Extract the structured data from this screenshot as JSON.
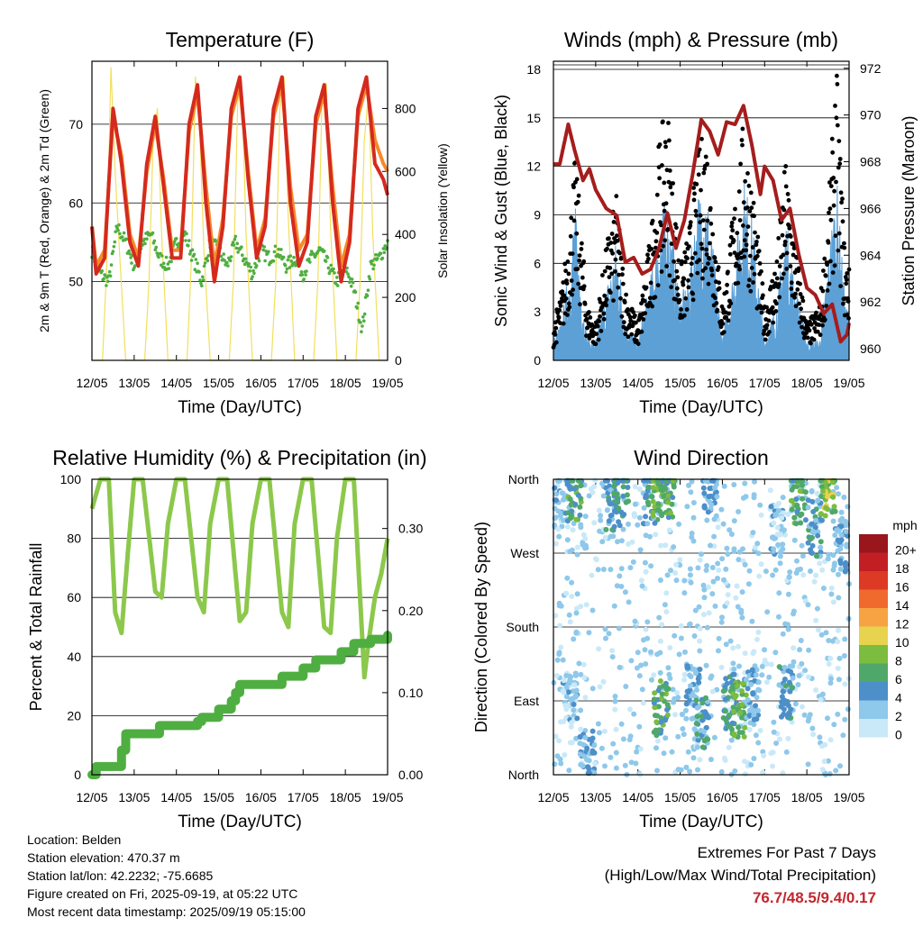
{
  "info": {
    "location": "Location: Belden",
    "elevation": "Station elevation: 470.37 m",
    "latlon": "Station lat/lon: 42.2232; -75.6685",
    "created": "Figure created on Fri, 2025-09-19, at 05:22 UTC",
    "recent": "Most recent data timestamp: 2025/09/19 05:15:00"
  },
  "extremes": {
    "title": "Extremes For Past 7 Days",
    "subtitle": "(High/Low/Max Wind/Total Precipitation)",
    "values": "76.7/48.5/9.4/0.17"
  },
  "colors": {
    "temp2m": "#d42a1e",
    "temp9m": "#f58a2a",
    "dewpoint": "#4fae41",
    "solar": "#f2df5c",
    "wind": "#5ca0d6",
    "gust": "#000000",
    "pressure": "#a51d1d",
    "rh": "#8cc84b",
    "precip": "#4fae41"
  },
  "chart_data": [
    {
      "type": "line",
      "title": "Temperature (F)",
      "xlabel": "Time (Day/UTC)",
      "ylabel": "2m & 9m T (Red, Orange) & 2m Td (Green)",
      "y2label": "Solar Insolation (Yellow)",
      "x_ticks": [
        "12/05",
        "13/05",
        "14/05",
        "15/05",
        "16/05",
        "17/05",
        "18/05",
        "19/05"
      ],
      "ylim": [
        40,
        78
      ],
      "yticks": [
        50,
        60,
        70
      ],
      "y2lim": [
        0,
        950
      ],
      "y2ticks": [
        0,
        200,
        400,
        600,
        800
      ],
      "grid": true,
      "series": [
        {
          "name": "2m T",
          "x_days": [
            0,
            0.1,
            0.3,
            0.5,
            0.7,
            0.9,
            1.1,
            1.3,
            1.5,
            1.7,
            1.9,
            2.1,
            2.3,
            2.5,
            2.7,
            2.9,
            3.1,
            3.3,
            3.5,
            3.7,
            3.9,
            4.1,
            4.3,
            4.5,
            4.7,
            4.9,
            5.1,
            5.3,
            5.5,
            5.7,
            5.9,
            6.1,
            6.3,
            6.5,
            6.7,
            6.9,
            7.0
          ],
          "values": [
            57,
            51,
            53,
            72,
            65,
            55,
            52,
            65,
            71,
            62,
            53,
            53,
            70,
            75,
            60,
            50,
            57,
            72,
            76,
            63,
            53,
            57,
            72,
            76,
            60,
            52,
            55,
            71,
            75,
            60,
            50,
            55,
            72,
            76,
            65,
            63,
            61
          ]
        },
        {
          "name": "9m T",
          "x_days": [
            0,
            0.1,
            0.3,
            0.5,
            0.7,
            0.9,
            1.1,
            1.3,
            1.5,
            1.7,
            1.9,
            2.1,
            2.3,
            2.5,
            2.7,
            2.9,
            3.1,
            3.3,
            3.5,
            3.7,
            3.9,
            4.1,
            4.3,
            4.5,
            4.7,
            4.9,
            5.1,
            5.3,
            5.5,
            5.7,
            5.9,
            6.1,
            6.3,
            6.5,
            6.7,
            6.9,
            7.0
          ],
          "values": [
            57,
            52,
            54,
            71,
            66,
            56,
            53,
            64,
            70,
            63,
            54,
            54,
            69,
            74,
            62,
            52,
            58,
            71,
            75,
            64,
            54,
            58,
            71,
            75,
            62,
            54,
            56,
            70,
            74,
            62,
            52,
            56,
            71,
            75,
            68,
            65,
            64
          ]
        },
        {
          "name": "2m Td",
          "x_days": [
            0,
            0.2,
            0.4,
            0.6,
            0.8,
            1.0,
            1.2,
            1.4,
            1.6,
            1.8,
            2.0,
            2.2,
            2.4,
            2.6,
            2.8,
            3.0,
            3.2,
            3.4,
            3.6,
            3.8,
            4.0,
            4.2,
            4.4,
            4.6,
            4.8,
            5.0,
            5.2,
            5.4,
            5.6,
            5.8,
            6.0,
            6.2,
            6.4,
            6.6,
            6.8,
            7.0
          ],
          "values": [
            54,
            51,
            50,
            57,
            55,
            52,
            55,
            56,
            53,
            52,
            55,
            56,
            53,
            50,
            55,
            54,
            52,
            55,
            53,
            51,
            54,
            53,
            54,
            52,
            53,
            51,
            53,
            54,
            52,
            50,
            52,
            49,
            44,
            52,
            53,
            55
          ]
        },
        {
          "name": "Solar",
          "axis": "y2",
          "x_days": [
            0,
            0.25,
            0.35,
            0.45,
            0.55,
            0.65,
            0.8,
            1.25,
            1.35,
            1.45,
            1.55,
            1.65,
            1.8,
            2.25,
            2.35,
            2.45,
            2.55,
            2.65,
            2.8,
            3.25,
            3.35,
            3.45,
            3.55,
            3.65,
            3.8,
            4.25,
            4.35,
            4.45,
            4.55,
            4.65,
            4.8,
            5.25,
            5.35,
            5.45,
            5.55,
            5.65,
            5.8,
            6.25,
            6.35,
            6.45,
            6.55,
            6.65,
            6.8,
            7.0
          ],
          "values": [
            0,
            0,
            300,
            930,
            600,
            350,
            0,
            0,
            250,
            700,
            800,
            400,
            0,
            0,
            300,
            900,
            750,
            350,
            0,
            0,
            250,
            820,
            870,
            400,
            0,
            0,
            250,
            800,
            900,
            450,
            0,
            0,
            250,
            850,
            880,
            420,
            0,
            0,
            250,
            700,
            850,
            400,
            0,
            0
          ]
        }
      ]
    },
    {
      "type": "scatter",
      "title": "Winds (mph) & Pressure (mb)",
      "xlabel": "Time (Day/UTC)",
      "ylabel": "Sonic Wind & Gust (Blue, Black)",
      "y2label": "Station Pressure (Maroon)",
      "x_ticks": [
        "12/05",
        "13/05",
        "14/05",
        "15/05",
        "16/05",
        "17/05",
        "18/05",
        "19/05"
      ],
      "ylim": [
        0,
        18.5
      ],
      "yticks": [
        0,
        3,
        6,
        9,
        12,
        15,
        18
      ],
      "y2lim": [
        959.5,
        972.3
      ],
      "y2ticks": [
        960,
        962,
        964,
        966,
        968,
        970,
        972
      ],
      "grid": true,
      "series": [
        {
          "name": "Wind",
          "x_days": [
            0,
            0.2,
            0.4,
            0.5,
            0.6,
            0.8,
            1.0,
            1.3,
            1.5,
            1.7,
            2.0,
            2.3,
            2.5,
            2.7,
            3.0,
            3.2,
            3.4,
            3.6,
            3.8,
            4.0,
            4.3,
            4.5,
            4.7,
            5.0,
            5.3,
            5.5,
            5.7,
            6.0,
            6.3,
            6.5,
            6.7,
            6.9,
            7.0
          ],
          "values": [
            1,
            2,
            5,
            8,
            5,
            1,
            1,
            4,
            6,
            2,
            1,
            4,
            7,
            8,
            3,
            4,
            8,
            9,
            5,
            1,
            5,
            9,
            7,
            1,
            3,
            7,
            4,
            1,
            1,
            5,
            9,
            3,
            2
          ]
        },
        {
          "name": "Gust",
          "x_days": [
            0,
            0.2,
            0.4,
            0.5,
            0.6,
            0.8,
            1.0,
            1.3,
            1.5,
            1.7,
            2.0,
            2.3,
            2.5,
            2.7,
            3.0,
            3.2,
            3.4,
            3.6,
            3.8,
            4.0,
            4.3,
            4.5,
            4.7,
            5.0,
            5.3,
            5.5,
            5.7,
            6.0,
            6.3,
            6.5,
            6.7,
            6.9,
            7.0
          ],
          "values": [
            2,
            4,
            8,
            11,
            9,
            3,
            2,
            7,
            9,
            4,
            2,
            7,
            12,
            14,
            5,
            7,
            11,
            13,
            8,
            3,
            9,
            13,
            10,
            3,
            6,
            11,
            7,
            2,
            3,
            8,
            16,
            6,
            5
          ]
        },
        {
          "name": "Pressure",
          "axis": "y2",
          "x_days": [
            0,
            0.15,
            0.35,
            0.5,
            0.7,
            0.85,
            1.0,
            1.25,
            1.5,
            1.7,
            1.9,
            2.1,
            2.3,
            2.5,
            2.7,
            2.9,
            3.1,
            3.3,
            3.5,
            3.7,
            3.9,
            4.1,
            4.3,
            4.5,
            4.7,
            4.9,
            5.0,
            5.2,
            5.4,
            5.6,
            5.8,
            6.0,
            6.2,
            6.4,
            6.6,
            6.8,
            6.95,
            7.0
          ],
          "values": [
            967.9,
            967.9,
            969.6,
            968.5,
            967.2,
            967.7,
            966.8,
            966.0,
            965.7,
            963.7,
            963.9,
            963.2,
            963.4,
            964.3,
            965.8,
            964.3,
            965.5,
            967.5,
            969.8,
            969.3,
            968.3,
            969.7,
            969.6,
            970.4,
            968.7,
            966.6,
            967.8,
            967.2,
            965.5,
            966.0,
            964.1,
            962.6,
            962.3,
            961.5,
            961.9,
            960.3,
            960.6,
            961.1
          ]
        }
      ]
    },
    {
      "type": "line",
      "title": "Relative Humidity (%) & Precipitation (in)",
      "xlabel": "Time (Day/UTC)",
      "ylabel": "Percent & Total Rainfall",
      "x_ticks": [
        "12/05",
        "13/05",
        "14/05",
        "15/05",
        "16/05",
        "17/05",
        "18/05",
        "19/05"
      ],
      "ylim": [
        0,
        100
      ],
      "yticks": [
        0,
        20,
        40,
        60,
        80,
        100
      ],
      "y2lim": [
        0,
        0.36
      ],
      "y2ticks": [
        "0.00",
        "0.10",
        "0.20",
        "0.30"
      ],
      "grid": true,
      "series": [
        {
          "name": "RH",
          "x_days": [
            0,
            0.2,
            0.4,
            0.55,
            0.7,
            0.85,
            1.0,
            1.2,
            1.5,
            1.65,
            1.8,
            2.0,
            2.2,
            2.5,
            2.65,
            2.8,
            3.0,
            3.2,
            3.5,
            3.65,
            3.8,
            4.0,
            4.2,
            4.5,
            4.65,
            4.8,
            5.0,
            5.2,
            5.5,
            5.65,
            5.8,
            6.0,
            6.2,
            6.45,
            6.55,
            6.7,
            6.85,
            7.0
          ],
          "values": [
            90,
            100,
            100,
            55,
            48,
            75,
            100,
            100,
            62,
            60,
            85,
            100,
            100,
            60,
            55,
            85,
            100,
            100,
            52,
            55,
            85,
            100,
            100,
            55,
            50,
            85,
            100,
            100,
            50,
            48,
            80,
            100,
            100,
            33,
            45,
            60,
            68,
            80
          ]
        },
        {
          "name": "Precipitation",
          "axis": "y2",
          "x_days": [
            0,
            0.1,
            0.5,
            0.7,
            0.8,
            1.5,
            1.6,
            2.2,
            2.5,
            2.6,
            2.9,
            3.0,
            3.3,
            3.4,
            3.5,
            4.3,
            4.5,
            4.7,
            5.0,
            5.3,
            5.7,
            5.9,
            6.2,
            6.6,
            7.0
          ],
          "values": [
            0.0,
            0.01,
            0.01,
            0.03,
            0.05,
            0.05,
            0.06,
            0.06,
            0.065,
            0.07,
            0.07,
            0.08,
            0.09,
            0.1,
            0.11,
            0.11,
            0.12,
            0.12,
            0.13,
            0.14,
            0.14,
            0.15,
            0.16,
            0.165,
            0.17
          ]
        }
      ]
    },
    {
      "type": "scatter",
      "title": "Wind Direction",
      "xlabel": "Time (Day/UTC)",
      "ylabel": "Direction (Colored By Speed)",
      "x_ticks": [
        "12/05",
        "13/05",
        "14/05",
        "15/05",
        "16/05",
        "17/05",
        "18/05",
        "19/05"
      ],
      "ylim": [
        0,
        360
      ],
      "ytick_labels": [
        "North",
        "East",
        "South",
        "West",
        "North"
      ],
      "legend": {
        "title": "mph",
        "placement": "right",
        "labels": [
          "0",
          "2",
          "4",
          "6",
          "8",
          "10",
          "12",
          "14",
          "16",
          "18",
          "20+"
        ],
        "colors": [
          "#c9e9f8",
          "#8ec8ea",
          "#4c8fc9",
          "#4fa86a",
          "#7cbc3f",
          "#e8d34e",
          "#f6a443",
          "#ef6a2c",
          "#dd3a26",
          "#c11f24",
          "#98161c"
        ]
      },
      "grid": true,
      "clusters": [
        {
          "x_days": 0.2,
          "dir": 330,
          "speed": 2
        },
        {
          "x_days": 0.5,
          "dir": 345,
          "speed": 6
        },
        {
          "x_days": 0.4,
          "dir": 90,
          "speed": 2
        },
        {
          "x_days": 0.8,
          "dir": 20,
          "speed": 3
        },
        {
          "x_days": 1.4,
          "dir": 330,
          "speed": 4
        },
        {
          "x_days": 1.6,
          "dir": 350,
          "speed": 5
        },
        {
          "x_days": 2.3,
          "dir": 340,
          "speed": 4
        },
        {
          "x_days": 2.5,
          "dir": 350,
          "speed": 8
        },
        {
          "x_days": 2.7,
          "dir": 345,
          "speed": 6
        },
        {
          "x_days": 2.55,
          "dir": 80,
          "speed": 6
        },
        {
          "x_days": 3.3,
          "dir": 100,
          "speed": 3
        },
        {
          "x_days": 3.5,
          "dir": 60,
          "speed": 4
        },
        {
          "x_days": 3.7,
          "dir": 350,
          "speed": 3
        },
        {
          "x_days": 4.2,
          "dir": 90,
          "speed": 5
        },
        {
          "x_days": 4.4,
          "dir": 80,
          "speed": 7
        },
        {
          "x_days": 4.7,
          "dir": 100,
          "speed": 3
        },
        {
          "x_days": 5.3,
          "dir": 300,
          "speed": 2
        },
        {
          "x_days": 5.5,
          "dir": 100,
          "speed": 4
        },
        {
          "x_days": 5.8,
          "dir": 340,
          "speed": 6
        },
        {
          "x_days": 6.2,
          "dir": 300,
          "speed": 4
        },
        {
          "x_days": 6.5,
          "dir": 350,
          "speed": 8
        },
        {
          "x_days": 6.8,
          "dir": 280,
          "speed": 3
        }
      ]
    }
  ]
}
